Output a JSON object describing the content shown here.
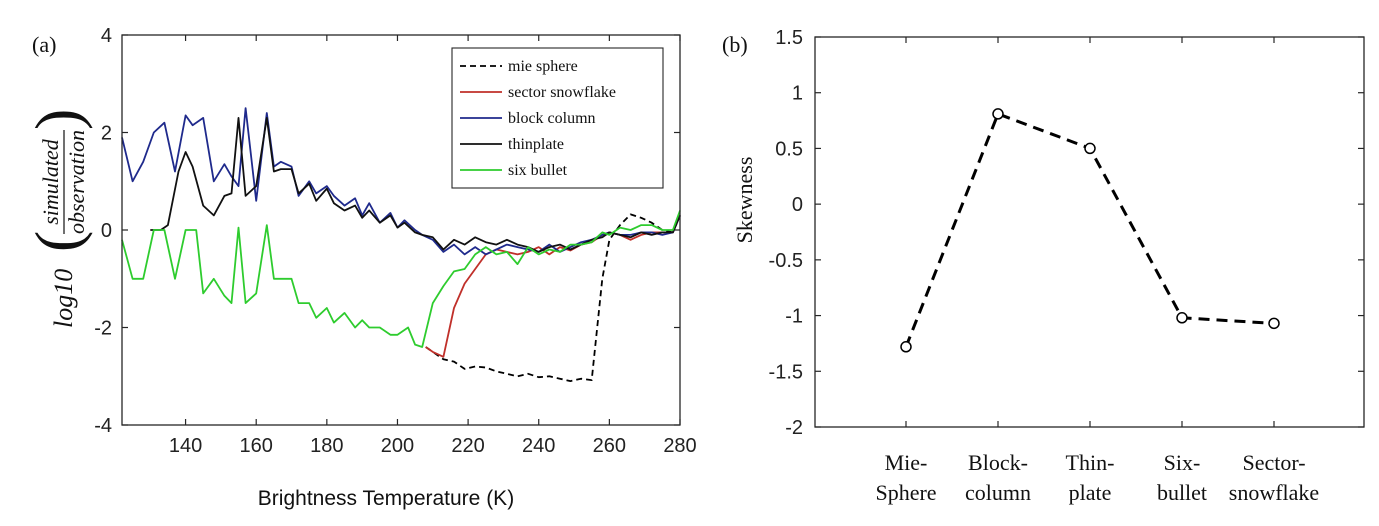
{
  "panels": [
    {
      "label": "(a)"
    },
    {
      "label": "(b)"
    }
  ],
  "chart_data": [
    {
      "type": "line",
      "xlabel": "Brightness Temperature (K)",
      "ylabel": {
        "prefix": "log10",
        "numerator": "simulated",
        "denominator": "observation"
      },
      "xlim": [
        122,
        280
      ],
      "ylim": [
        -4,
        4
      ],
      "xticks": [
        "140",
        "160",
        "180",
        "200",
        "220",
        "240",
        "260",
        "280"
      ],
      "yticks": [
        "4",
        "2",
        "0",
        "-2",
        "-4"
      ],
      "grid": false,
      "legend_position": "top-right",
      "series": [
        {
          "name": "mie sphere",
          "color": "#000000",
          "dash": "6,4",
          "x": [
            208,
            210,
            213,
            216,
            219,
            222,
            225,
            228,
            231,
            234,
            237,
            240,
            243,
            246,
            249,
            252,
            255,
            258,
            260,
            263,
            266,
            269,
            272,
            275,
            278,
            280
          ],
          "y": [
            -2.4,
            -2.5,
            -2.65,
            -2.7,
            -2.85,
            -2.8,
            -2.82,
            -2.9,
            -2.95,
            -3.0,
            -2.95,
            -3.02,
            -3.0,
            -3.05,
            -3.1,
            -3.05,
            -3.08,
            -1.0,
            -0.2,
            0.1,
            0.32,
            0.25,
            0.15,
            0.0,
            -0.05,
            0.3
          ]
        },
        {
          "name": "sector snowflake",
          "color": "#c0302a",
          "dash": "",
          "x": [
            208,
            210,
            213,
            216,
            219,
            222,
            225,
            228,
            231,
            234,
            237,
            240,
            243,
            246,
            249,
            252,
            255,
            258,
            260,
            263,
            266,
            269,
            272,
            275,
            278,
            280
          ],
          "y": [
            -2.4,
            -2.5,
            -2.6,
            -1.6,
            -1.1,
            -0.8,
            -0.5,
            -0.4,
            -0.45,
            -0.5,
            -0.45,
            -0.35,
            -0.5,
            -0.35,
            -0.42,
            -0.3,
            -0.25,
            -0.1,
            -0.05,
            -0.1,
            -0.2,
            -0.1,
            -0.05,
            -0.05,
            -0.05,
            0.3
          ]
        },
        {
          "name": "block column",
          "color": "#1f2a8c",
          "dash": "",
          "x": [
            122,
            125,
            128,
            131,
            134,
            137,
            140,
            142,
            145,
            148,
            151,
            153,
            155,
            157,
            160,
            163,
            165,
            167,
            170,
            172,
            175,
            177,
            180,
            182,
            185,
            188,
            190,
            192,
            195,
            198,
            200,
            202,
            205,
            207,
            210,
            213,
            216,
            219,
            222,
            225,
            228,
            231,
            234,
            237,
            240,
            243,
            246,
            249,
            252,
            255,
            258,
            260,
            263,
            266,
            269,
            272,
            275,
            278,
            280
          ],
          "y": [
            1.9,
            1.0,
            1.4,
            2.0,
            2.2,
            1.2,
            2.35,
            2.15,
            2.3,
            1.0,
            1.35,
            1.1,
            0.9,
            2.5,
            0.6,
            2.4,
            1.3,
            1.4,
            1.3,
            0.7,
            1.0,
            0.75,
            0.9,
            0.7,
            0.5,
            0.65,
            0.3,
            0.55,
            0.15,
            0.35,
            0.05,
            0.2,
            0.0,
            -0.1,
            -0.2,
            -0.45,
            -0.3,
            -0.5,
            -0.35,
            -0.5,
            -0.4,
            -0.3,
            -0.35,
            -0.4,
            -0.45,
            -0.3,
            -0.45,
            -0.35,
            -0.25,
            -0.2,
            -0.1,
            -0.05,
            -0.1,
            -0.1,
            -0.05,
            -0.05,
            -0.1,
            -0.05,
            0.3
          ]
        },
        {
          "name": "thinplate",
          "color": "#111111",
          "dash": "",
          "x": [
            130,
            133,
            135,
            138,
            140,
            142,
            145,
            148,
            151,
            153,
            155,
            157,
            160,
            163,
            165,
            167,
            170,
            172,
            175,
            177,
            180,
            182,
            185,
            188,
            190,
            192,
            195,
            198,
            200,
            202,
            205,
            207,
            210,
            213,
            216,
            219,
            222,
            225,
            228,
            231,
            234,
            237,
            240,
            243,
            246,
            249,
            252,
            255,
            258,
            260,
            263,
            266,
            269,
            272,
            275,
            278,
            280
          ],
          "y": [
            0.0,
            0.0,
            0.1,
            1.2,
            1.6,
            1.3,
            0.5,
            0.3,
            0.7,
            0.75,
            2.3,
            0.7,
            0.9,
            2.3,
            1.2,
            1.25,
            1.25,
            0.75,
            0.95,
            0.6,
            0.85,
            0.55,
            0.4,
            0.5,
            0.25,
            0.4,
            0.15,
            0.3,
            0.05,
            0.15,
            -0.05,
            -0.1,
            -0.15,
            -0.4,
            -0.2,
            -0.3,
            -0.15,
            -0.25,
            -0.3,
            -0.2,
            -0.3,
            -0.35,
            -0.45,
            -0.35,
            -0.3,
            -0.4,
            -0.3,
            -0.2,
            -0.15,
            -0.05,
            -0.1,
            -0.15,
            -0.05,
            -0.1,
            -0.05,
            -0.05,
            0.3
          ]
        },
        {
          "name": "six bullet",
          "color": "#2ecc2e",
          "dash": "",
          "x": [
            122,
            125,
            128,
            131,
            134,
            137,
            140,
            143,
            145,
            148,
            151,
            153,
            155,
            157,
            160,
            163,
            165,
            167,
            170,
            172,
            175,
            177,
            180,
            182,
            185,
            188,
            190,
            192,
            195,
            198,
            200,
            203,
            205,
            207,
            210,
            213,
            216,
            219,
            222,
            225,
            228,
            231,
            234,
            237,
            240,
            243,
            246,
            249,
            252,
            255,
            258,
            260,
            263,
            266,
            269,
            272,
            275,
            278,
            280
          ],
          "y": [
            -0.2,
            -1.0,
            -1.0,
            0.0,
            0.0,
            -1.0,
            0.0,
            0.0,
            -1.3,
            -1.0,
            -1.35,
            -1.5,
            0.05,
            -1.5,
            -1.3,
            0.1,
            -1.0,
            -1.0,
            -1.0,
            -1.5,
            -1.5,
            -1.8,
            -1.6,
            -1.9,
            -1.7,
            -2.0,
            -1.85,
            -2.0,
            -2.0,
            -2.15,
            -2.15,
            -2.0,
            -2.35,
            -2.4,
            -1.5,
            -1.15,
            -0.85,
            -0.8,
            -0.5,
            -0.35,
            -0.5,
            -0.45,
            -0.7,
            -0.35,
            -0.5,
            -0.4,
            -0.45,
            -0.3,
            -0.3,
            -0.25,
            -0.05,
            -0.1,
            0.05,
            0.0,
            0.1,
            0.1,
            0.0,
            0.0,
            0.4
          ]
        }
      ]
    },
    {
      "type": "line",
      "xlabel": "",
      "ylabel": "Skewness",
      "ylim": [
        -2,
        1.5
      ],
      "yticks": [
        "1.5",
        "1",
        "0.5",
        "0",
        "-0.5",
        "-1",
        "-1.5",
        "-2"
      ],
      "grid": false,
      "categories": [
        {
          "line1": "Mie-",
          "line2": "Sphere"
        },
        {
          "line1": "Block-",
          "line2": "column"
        },
        {
          "line1": "Thin-",
          "line2": "plate"
        },
        {
          "line1": "Six-",
          "line2": "bullet"
        },
        {
          "line1": "Sector-",
          "line2": "snowflake"
        }
      ],
      "values": [
        -1.28,
        0.81,
        0.5,
        -1.02,
        -1.07
      ],
      "color": "#000000"
    }
  ]
}
